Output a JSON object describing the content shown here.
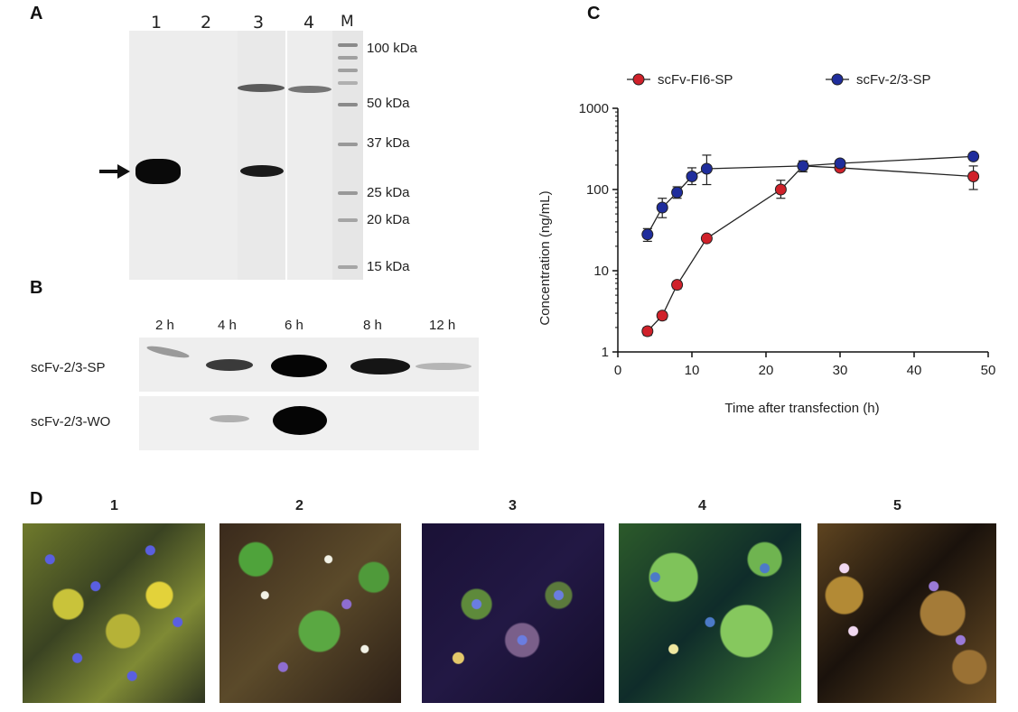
{
  "panels": {
    "a": {
      "letter": "A",
      "lanes": [
        "1",
        "2",
        "3",
        "4",
        "M"
      ],
      "markers": [
        "100 kDa",
        "50 kDa",
        "37 kDa",
        "25 kDa",
        "20 kDa",
        "15 kDa"
      ]
    },
    "b": {
      "letter": "B",
      "timepoints": [
        "2 h",
        "4 h",
        "6 h",
        "8 h",
        "12 h"
      ],
      "rows": [
        "scFv-2/3-SP",
        "scFv-2/3-WO"
      ]
    },
    "c": {
      "letter": "C"
    },
    "d": {
      "letter": "D",
      "images": [
        "1",
        "2",
        "3",
        "4",
        "5"
      ]
    }
  },
  "chart_data": {
    "type": "line",
    "xlabel": "Time after transfection (h)",
    "ylabel": "Concentration (ng/mL)",
    "xlim": [
      0,
      50
    ],
    "ylim": [
      1,
      1000
    ],
    "yscale": "log",
    "xticks": [
      "0",
      "10",
      "20",
      "30",
      "40",
      "50"
    ],
    "yticks": [
      "1",
      "10",
      "100",
      "1000"
    ],
    "legend_position": "top",
    "series": [
      {
        "name": "scFv-FI6-SP",
        "color": "#d0212a",
        "x": [
          4,
          6,
          8,
          12,
          22,
          25,
          30,
          48
        ],
        "y": [
          1.8,
          2.8,
          6.7,
          25,
          100,
          195,
          185,
          145
        ],
        "err_low": [
          1.6,
          2.5,
          6.0,
          23,
          78,
          165,
          170,
          100
        ],
        "err_high": [
          2.0,
          3.1,
          7.4,
          27,
          130,
          225,
          200,
          195
        ]
      },
      {
        "name": "scFv-2/3-SP",
        "color": "#1f2d9c",
        "x": [
          4,
          6,
          8,
          10,
          12,
          25,
          30,
          48
        ],
        "y": [
          28,
          60,
          92,
          145,
          180,
          195,
          210,
          255
        ],
        "err_low": [
          23,
          45,
          78,
          115,
          115,
          175,
          195,
          235
        ],
        "err_high": [
          33,
          78,
          108,
          185,
          265,
          215,
          225,
          275
        ]
      }
    ]
  }
}
